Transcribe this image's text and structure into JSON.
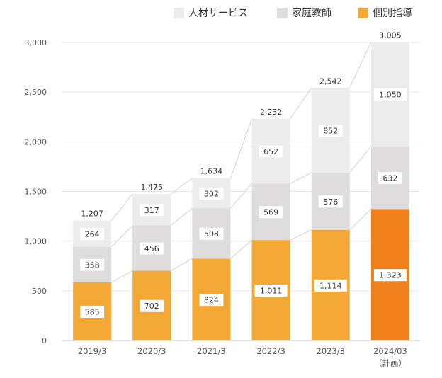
{
  "colors": {
    "jinzai": "#ececec",
    "katei": "#dedcdc",
    "kobetsu": "#f3a835",
    "kobetsu_plan": "#f07f1c",
    "grid": "#e6e6e6",
    "axis": "#555555",
    "connector": "#d2d2d2",
    "label_text": "#333333"
  },
  "legend": [
    {
      "key": "jinzai",
      "label": "人材サービス"
    },
    {
      "key": "katei",
      "label": "家庭教師"
    },
    {
      "key": "kobetsu",
      "label": "個別指導"
    }
  ],
  "chart_data": {
    "type": "bar",
    "stacked": true,
    "categories": [
      "2019/3",
      "2020/3",
      "2021/3",
      "2022/3",
      "2023/3",
      "2024/03"
    ],
    "category_sublabels": [
      "",
      "",
      "",
      "",
      "",
      "（計画）"
    ],
    "series": [
      {
        "key": "kobetsu",
        "name": "個別指導",
        "values": [
          585,
          702,
          824,
          1011,
          1114,
          1323
        ]
      },
      {
        "key": "katei",
        "name": "家庭教師",
        "values": [
          358,
          456,
          508,
          569,
          576,
          632
        ]
      },
      {
        "key": "jinzai",
        "name": "人材サービス",
        "values": [
          264,
          317,
          302,
          652,
          852,
          1050
        ]
      }
    ],
    "totals": [
      1207,
      1475,
      1634,
      2232,
      2542,
      3005
    ],
    "yticks": [
      0,
      500,
      1000,
      1500,
      2000,
      2500,
      3000
    ],
    "ytick_labels": [
      "0",
      "500",
      "1,000",
      "1,500",
      "2,000",
      "2,500",
      "3,000"
    ],
    "ylim": [
      0,
      3000
    ],
    "grid": true,
    "legend_position": "top-right",
    "highlight_last": true
  }
}
